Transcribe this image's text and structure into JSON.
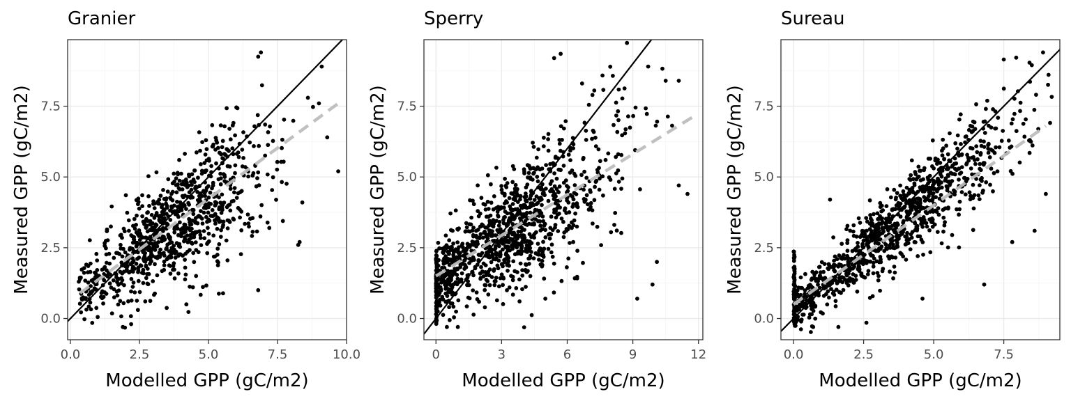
{
  "figure": {
    "xlabel": "Modelled GPP (gC/m2)",
    "ylabel": "Measured GPP (gC/m2)"
  },
  "chart_data": [
    {
      "type": "scatter",
      "title": "Granier",
      "xlabel": "Modelled GPP (gC/m2)",
      "ylabel": "Measured GPP (gC/m2)",
      "xlim": [
        -0.1,
        10.0
      ],
      "ylim": [
        -0.75,
        9.85
      ],
      "xticks": [
        0,
        2.5,
        5,
        7.5,
        10
      ],
      "xtick_labels": [
        "0.0",
        "2.5",
        "5.0",
        "7.5",
        "10.0"
      ],
      "yticks": [
        0,
        2.5,
        5,
        7.5
      ],
      "ytick_labels": [
        "0.0",
        "2.5",
        "5.0",
        "7.5"
      ],
      "grid": true,
      "reference_line": {
        "style": "solid",
        "color": "#000000",
        "slope": 1,
        "intercept": 0
      },
      "fit_line": {
        "style": "dashed",
        "color": "#bdbdbd",
        "x": [
          0.35,
          9.7
        ],
        "y": [
          0.9,
          7.6
        ]
      },
      "cloud": {
        "n": 900,
        "x_center": 3.8,
        "x_spread": 1.8,
        "x_range": [
          0.3,
          9.7
        ],
        "slope": 0.72,
        "intercept": 0.6,
        "noise": 1.05
      },
      "outliers": [
        [
          6.9,
          9.4
        ],
        [
          6.8,
          9.25
        ],
        [
          9.1,
          8.9
        ],
        [
          9.3,
          6.4
        ],
        [
          9.7,
          5.2
        ],
        [
          8.4,
          4.1
        ],
        [
          8.3,
          2.7
        ],
        [
          8.25,
          2.6
        ],
        [
          6.8,
          1.0
        ],
        [
          4.2,
          0.5
        ],
        [
          1.9,
          -0.3
        ],
        [
          2.2,
          -0.2
        ],
        [
          8.6,
          7.8
        ],
        [
          9.0,
          7.6
        ]
      ]
    },
    {
      "type": "scatter",
      "title": "Sperry",
      "xlabel": "Modelled GPP (gC/m2)",
      "ylabel": "Measured GPP (gC/m2)",
      "xlim": [
        -0.55,
        12.2
      ],
      "ylim": [
        -0.75,
        9.85
      ],
      "xticks": [
        0,
        3,
        6,
        9,
        12
      ],
      "xtick_labels": [
        "0",
        "3",
        "6",
        "9",
        "12"
      ],
      "yticks": [
        0,
        2.5,
        5,
        7.5
      ],
      "ytick_labels": [
        "0.0",
        "2.5",
        "5.0",
        "7.5"
      ],
      "grid": true,
      "reference_line": {
        "style": "solid",
        "color": "#000000",
        "slope": 1,
        "intercept": 0
      },
      "fit_line": {
        "style": "dashed",
        "color": "#bdbdbd",
        "x": [
          0.0,
          11.7
        ],
        "y": [
          1.5,
          7.1
        ]
      },
      "cloud": {
        "n": 1050,
        "x_center": 3.4,
        "x_spread": 2.4,
        "x_range": [
          0.0,
          11.6
        ],
        "slope": 0.5,
        "intercept": 1.4,
        "noise": 1.15,
        "zero_cluster": 70
      },
      "outliers": [
        [
          5.4,
          9.2
        ],
        [
          5.7,
          9.35
        ],
        [
          9.7,
          8.9
        ],
        [
          10.5,
          8.4
        ],
        [
          11.1,
          8.4
        ],
        [
          11.5,
          4.4
        ],
        [
          11.1,
          4.7
        ],
        [
          10.1,
          2.0
        ],
        [
          9.9,
          1.2
        ],
        [
          9.2,
          0.7
        ],
        [
          5.0,
          0.7
        ],
        [
          0.5,
          -0.3
        ],
        [
          1.0,
          -0.3
        ]
      ]
    },
    {
      "type": "scatter",
      "title": "Sureau",
      "xlabel": "Modelled GPP (gC/m2)",
      "ylabel": "Measured GPP (gC/m2)",
      "xlim": [
        -0.45,
        9.5
      ],
      "ylim": [
        -0.75,
        9.85
      ],
      "xticks": [
        0,
        2.5,
        5,
        7.5
      ],
      "xtick_labels": [
        "0.0",
        "2.5",
        "5.0",
        "7.5"
      ],
      "yticks": [
        0,
        2.5,
        5,
        7.5
      ],
      "ytick_labels": [
        "0.0",
        "2.5",
        "5.0",
        "7.5"
      ],
      "grid": true,
      "reference_line": {
        "style": "solid",
        "color": "#000000",
        "slope": 1,
        "intercept": 0
      },
      "fit_line": {
        "style": "dashed",
        "color": "#bdbdbd",
        "x": [
          0.0,
          9.0
        ],
        "y": [
          0.5,
          6.8
        ]
      },
      "cloud": {
        "n": 1000,
        "x_center": 3.6,
        "x_spread": 2.2,
        "x_range": [
          0.0,
          9.3
        ],
        "slope": 0.82,
        "intercept": 0.3,
        "noise": 0.75,
        "zero_cluster": 55
      },
      "outliers": [
        [
          7.5,
          9.15
        ],
        [
          8.9,
          9.4
        ],
        [
          8.5,
          8.95
        ],
        [
          6.8,
          1.2
        ],
        [
          4.6,
          0.7
        ],
        [
          1.6,
          -0.3
        ],
        [
          2.6,
          -0.15
        ],
        [
          0.7,
          -0.3
        ],
        [
          1.3,
          4.2
        ],
        [
          9.0,
          4.4
        ],
        [
          8.6,
          3.1
        ],
        [
          7.8,
          2.7
        ]
      ]
    }
  ]
}
